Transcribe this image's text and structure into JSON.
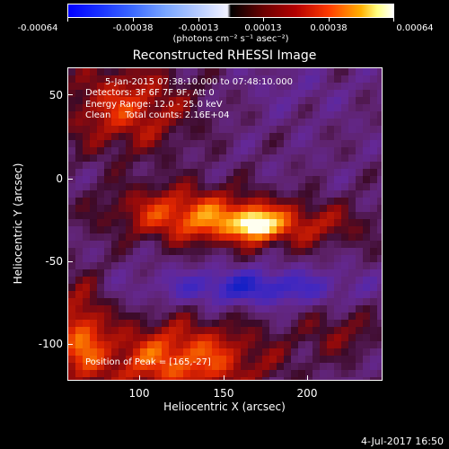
{
  "colorbar": {
    "ticks": [
      "-0.00064",
      "-0.00038",
      "-0.00013",
      "0.00013",
      "0.00038",
      "0.00064"
    ],
    "units": "(photons cm⁻² s⁻¹ asec⁻²)"
  },
  "title": "Reconstructed RHESSI Image",
  "annotations": {
    "time": "5-Jan-2015 07:38:10.000 to 07:48:10.000",
    "detectors": "Detectors: 3F 6F 7F 9F, Att 0",
    "energy": "Energy Range: 12.0 - 25.0 keV",
    "counts": "Clean     Total counts: 2.16E+04",
    "peak": "Position of Peak = [165,-27]"
  },
  "axes": {
    "xlabel": "Heliocentric X (arcsec)",
    "ylabel": "Heliocentric Y (arcsec)",
    "xticks": [
      "100",
      "150",
      "200"
    ],
    "yticks": [
      "50",
      "0",
      "-50",
      "-100"
    ]
  },
  "footer": "4-Jul-2017 16:50"
}
